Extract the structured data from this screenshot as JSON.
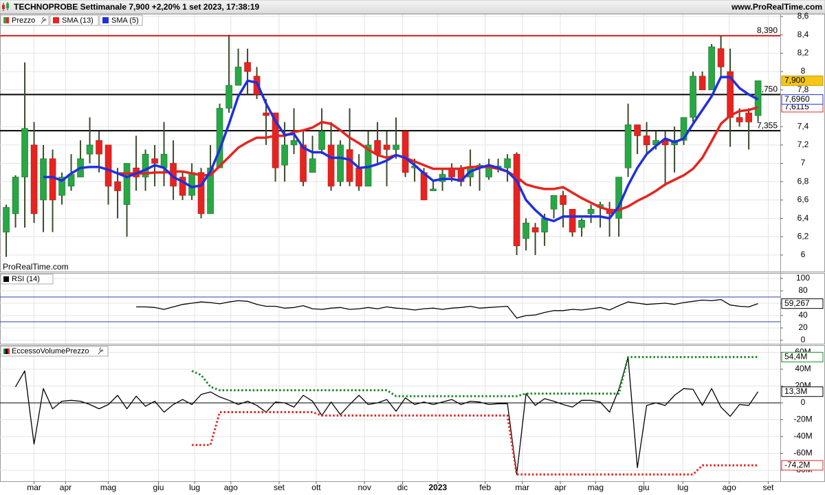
{
  "header": {
    "title": "TECHNOPROBE Settimanale 7,900 +2,20% 1 set 2023, 17:38:19",
    "site": "www.ProRealTime.com"
  },
  "chart_data": [
    {
      "type": "candlestick",
      "name": "Prezzo",
      "watermark": "ProRealTime.com",
      "up_color": "#27a844",
      "down_color": "#e8231f",
      "last_color": "#f5c518",
      "last_label": "7,900",
      "open": [
        6.25,
        6.45,
        6.85,
        7.2,
        6.6,
        7.05,
        6.65,
        6.75,
        6.85,
        7.1,
        7.25,
        7.2,
        6.8,
        6.55,
        6.95,
        6.85,
        7.05,
        6.95,
        7.0,
        6.85,
        6.65,
        6.9,
        6.45,
        6.95,
        7.6,
        7.85,
        8.1,
        7.95,
        7.55,
        7.55,
        6.98,
        7.2,
        7.2,
        6.9,
        7.15,
        7.2,
        6.8,
        7.15,
        6.95,
        6.75,
        7.25,
        7.2,
        7.15,
        7.35,
        6.95,
        6.9,
        6.7,
        6.8,
        6.95,
        6.95,
        6.85,
        6.95,
        6.85,
        6.95,
        6.95,
        7.1,
        6.18,
        6.3,
        6.25,
        6.5,
        6.65,
        6.5,
        6.3,
        6.45,
        6.52,
        6.5,
        6.4,
        6.95,
        7.42,
        7.3,
        7.2,
        7.25,
        7.2,
        7.25,
        7.5,
        7.95,
        7.8,
        8.25,
        8.0,
        7.5,
        7.55,
        7.52
      ],
      "high": [
        6.55,
        6.87,
        8.1,
        7.45,
        7.2,
        7.15,
        6.9,
        7.1,
        7.25,
        7.5,
        7.35,
        7.2,
        6.95,
        7.0,
        7.3,
        7.15,
        7.2,
        7.45,
        7.25,
        6.9,
        7.0,
        6.95,
        7.2,
        7.65,
        8.4,
        8.25,
        8.25,
        8.05,
        7.7,
        7.55,
        7.45,
        7.6,
        7.35,
        7.3,
        7.6,
        7.45,
        7.25,
        7.6,
        7.1,
        7.35,
        7.45,
        7.35,
        7.5,
        7.35,
        7.05,
        6.95,
        6.8,
        6.95,
        7.0,
        6.98,
        7.15,
        7.0,
        7.05,
        7.05,
        7.1,
        7.12,
        6.4,
        6.35,
        6.45,
        6.65,
        6.7,
        6.5,
        6.4,
        6.55,
        6.58,
        6.58,
        6.85,
        7.65,
        7.42,
        7.45,
        7.35,
        7.35,
        7.4,
        7.5,
        8.0,
        8.0,
        8.3,
        8.39,
        8.25,
        7.6,
        7.6,
        7.9
      ],
      "low": [
        5.98,
        6.3,
        6.3,
        6.35,
        6.25,
        6.25,
        6.55,
        6.7,
        6.85,
        7.0,
        6.9,
        6.55,
        6.4,
        6.2,
        6.7,
        6.7,
        6.75,
        6.75,
        6.6,
        6.6,
        6.6,
        6.4,
        6.45,
        6.95,
        7.55,
        7.85,
        7.75,
        7.7,
        7.2,
        6.8,
        6.8,
        7.1,
        6.75,
        6.9,
        7.1,
        6.7,
        6.75,
        6.75,
        6.7,
        6.75,
        7.0,
        6.75,
        7.05,
        6.85,
        6.8,
        6.6,
        6.7,
        6.7,
        6.8,
        6.75,
        6.75,
        6.7,
        6.82,
        6.9,
        6.8,
        6.0,
        6.05,
        6.0,
        6.1,
        6.4,
        6.3,
        6.2,
        6.2,
        6.35,
        6.3,
        6.2,
        6.2,
        6.85,
        7.1,
        7.1,
        7.15,
        6.75,
        6.9,
        7.2,
        7.45,
        7.8,
        7.8,
        7.95,
        7.18,
        7.4,
        7.15,
        7.45
      ],
      "close": [
        6.52,
        6.85,
        7.38,
        6.45,
        7.05,
        6.6,
        6.85,
        6.88,
        7.05,
        7.2,
        7.1,
        6.75,
        6.7,
        7.0,
        6.85,
        7.1,
        7.0,
        7.1,
        6.75,
        6.65,
        6.9,
        6.45,
        6.95,
        7.6,
        7.85,
        8.05,
        8.0,
        7.75,
        7.52,
        6.95,
        7.2,
        7.25,
        6.8,
        7.05,
        7.35,
        6.75,
        7.2,
        6.8,
        6.75,
        7.2,
        7.1,
        7.15,
        7.2,
        6.9,
        6.97,
        6.6,
        6.72,
        6.88,
        6.85,
        6.8,
        6.95,
        6.98,
        6.97,
        6.97,
        7.05,
        6.1,
        6.35,
        6.25,
        6.4,
        6.65,
        6.55,
        6.25,
        6.38,
        6.5,
        6.55,
        6.45,
        6.85,
        7.42,
        7.3,
        7.2,
        7.25,
        7.2,
        7.25,
        7.5,
        7.95,
        7.8,
        8.27,
        8.05,
        7.5,
        7.45,
        7.45,
        7.9
      ],
      "series": [
        {
          "name": "SMA (13)",
          "color": "#e8231f",
          "last_label": "7,6115",
          "values": [
            null,
            null,
            null,
            null,
            null,
            null,
            null,
            null,
            null,
            null,
            null,
            null,
            6.89,
            6.89,
            6.89,
            6.89,
            6.9,
            6.9,
            6.91,
            6.91,
            6.89,
            6.87,
            6.87,
            6.97,
            7.07,
            7.17,
            7.23,
            7.28,
            7.28,
            7.3,
            7.3,
            7.34,
            7.36,
            7.39,
            7.45,
            7.43,
            7.36,
            7.28,
            7.22,
            7.15,
            7.09,
            7.06,
            7.09,
            7.06,
            7.02,
            6.98,
            6.94,
            6.94,
            6.94,
            6.94,
            6.96,
            6.96,
            6.96,
            6.94,
            6.91,
            6.85,
            6.77,
            6.74,
            6.72,
            6.72,
            6.74,
            6.68,
            6.62,
            6.57,
            6.52,
            6.49,
            6.49,
            6.53,
            6.59,
            6.64,
            6.7,
            6.77,
            6.82,
            6.87,
            6.94,
            7.06,
            7.24,
            7.43,
            7.52,
            7.57,
            7.58,
            7.6115
          ]
        },
        {
          "name": "SMA (5)",
          "color": "#1f2fe0",
          "last_label": "7,6960",
          "values": [
            null,
            null,
            null,
            null,
            6.85,
            6.85,
            6.81,
            6.89,
            6.95,
            6.96,
            6.96,
            6.93,
            6.89,
            6.85,
            6.89,
            6.93,
            6.98,
            6.95,
            6.85,
            6.8,
            6.74,
            6.76,
            6.91,
            7.15,
            7.43,
            7.73,
            7.9,
            7.88,
            7.65,
            7.46,
            7.31,
            7.32,
            7.17,
            7.12,
            7.12,
            7.06,
            7.06,
            7.04,
            6.95,
            6.96,
            6.99,
            7.03,
            7.09,
            7.06,
            6.98,
            6.89,
            6.81,
            6.83,
            6.83,
            6.81,
            6.91,
            6.95,
            6.98,
            6.95,
            6.91,
            6.81,
            6.6,
            6.49,
            6.4,
            6.37,
            6.42,
            6.42,
            6.42,
            6.42,
            6.42,
            6.4,
            6.53,
            6.76,
            6.95,
            7.1,
            7.19,
            7.27,
            7.23,
            7.27,
            7.43,
            7.58,
            7.73,
            7.94,
            7.94,
            7.82,
            7.75,
            7.696
          ]
        }
      ],
      "levels": [
        {
          "value": 8.39,
          "label": "8,390",
          "color": "#e8231f"
        },
        {
          "value": 7.75,
          "label": "7,750",
          "color": "#000000"
        },
        {
          "value": 7.355,
          "label": "7,355",
          "color": "#000000"
        }
      ],
      "xlim": [
        -0.67,
        83.4
      ],
      "ylim": [
        5.82,
        8.63
      ],
      "yticks": [
        {
          "value": 8.6,
          "label": "8,6"
        },
        {
          "value": 8.4,
          "label": "8,4"
        },
        {
          "value": 8.2,
          "label": "8,2"
        },
        8,
        {
          "value": 7.8,
          "label": "7,8"
        },
        {
          "value": 7.4,
          "label": "7,4"
        },
        {
          "value": 7.2,
          "label": "7,2"
        },
        7,
        {
          "value": 6.8,
          "label": "6,8"
        },
        {
          "value": 6.6,
          "label": "6,6"
        },
        {
          "value": 6.4,
          "label": "6,4"
        },
        {
          "value": 6.2,
          "label": "6,2"
        },
        6
      ]
    },
    {
      "type": "line",
      "title": "RSI (14)",
      "series": [
        {
          "color": "#000000",
          "last_label": "59,267",
          "values": [
            null,
            null,
            null,
            null,
            null,
            null,
            null,
            null,
            null,
            null,
            null,
            null,
            null,
            null,
            54,
            54,
            53,
            50,
            54,
            58,
            60,
            62,
            61,
            59,
            62,
            64,
            63,
            58,
            55,
            55,
            52,
            53,
            56,
            51,
            50,
            52,
            53,
            50,
            51,
            53,
            51,
            54,
            52,
            51,
            49,
            51,
            52,
            50,
            52,
            53,
            55,
            52,
            53,
            54,
            55,
            36,
            40,
            41,
            45,
            48,
            48,
            50,
            49,
            51,
            53,
            49,
            56,
            62,
            60,
            58,
            59,
            60,
            58,
            61,
            63,
            65,
            64,
            66,
            57,
            55,
            54,
            59.267
          ]
        }
      ],
      "levels": [
        {
          "value": 70,
          "color": "#2b3fae"
        },
        {
          "value": 30,
          "color": "#2b3fae"
        }
      ],
      "xlim": [
        -0.67,
        83.4
      ],
      "ylim": [
        -5.6,
        108.9
      ],
      "yticks": [
        100,
        80,
        60,
        40,
        20,
        0
      ]
    },
    {
      "type": "line",
      "title": "EccessoVolumePrezzo",
      "series": [
        {
          "color": "#000000",
          "style": "solid",
          "last_label": "13,3M",
          "values": [
            null,
            19,
            38,
            -49,
            17,
            -7,
            2,
            3,
            2,
            -2,
            -7,
            -2,
            9,
            -7,
            8,
            -4,
            2,
            -11,
            -2,
            4,
            -2,
            10,
            13,
            7,
            3,
            -2,
            2,
            -3,
            -11,
            1,
            0,
            -5,
            9,
            2,
            -15,
            1,
            -14,
            -2,
            9,
            -2,
            0,
            4,
            -10,
            6,
            -2,
            1,
            -2,
            1,
            4,
            -2,
            2,
            1,
            -2,
            -1,
            -1,
            -85,
            11,
            -3,
            5,
            2,
            -2,
            -5,
            3,
            3,
            1,
            -11,
            16,
            54,
            -77,
            -3,
            0,
            -3,
            9,
            17,
            16,
            -3,
            17,
            -5,
            -16,
            -2,
            -3,
            13.3
          ]
        },
        {
          "color": "#1a8a2a",
          "style": "dotted",
          "last_label": "54,4M",
          "values": [
            null,
            null,
            null,
            null,
            null,
            null,
            null,
            null,
            null,
            null,
            null,
            null,
            null,
            null,
            null,
            null,
            null,
            null,
            null,
            null,
            38,
            33,
            19,
            15,
            15,
            15,
            15,
            15,
            15,
            15,
            15,
            15,
            15,
            15,
            15,
            15,
            15,
            15,
            15,
            15,
            15,
            15,
            8,
            8,
            8,
            8,
            8,
            8,
            8,
            8,
            8,
            8,
            8,
            8,
            8,
            8,
            11,
            11,
            11,
            11,
            11,
            11,
            11,
            11,
            11,
            11,
            11,
            54.4,
            54.4,
            54.4,
            54.4,
            54.4,
            54.4,
            54.4,
            54.4,
            54.4,
            54.4,
            54.4,
            54.4,
            54.4,
            54.4,
            54.4
          ]
        },
        {
          "color": "#e8231f",
          "style": "dotted",
          "last_label": "-74,2M",
          "values": [
            null,
            null,
            null,
            null,
            null,
            null,
            null,
            null,
            null,
            null,
            null,
            null,
            null,
            null,
            null,
            null,
            null,
            null,
            null,
            null,
            -50,
            -50,
            -50,
            -11,
            -11,
            -11,
            -11,
            -11,
            -11,
            -11,
            -11,
            -11,
            -11,
            -11,
            -15,
            -15,
            -15,
            -15,
            -15,
            -15,
            -15,
            -15,
            -15,
            -15,
            -15,
            -15,
            -15,
            -15,
            -15,
            -15,
            -15,
            -15,
            -15,
            -15,
            -15,
            -85,
            -85,
            -85,
            -85,
            -85,
            -85,
            -85,
            -85,
            -85,
            -85,
            -85,
            -85,
            -85,
            -85,
            -85,
            -85,
            -85,
            -85,
            -85,
            -85,
            -74.2,
            -74.2,
            -74.2,
            -74.2,
            -74.2,
            -74.2,
            -74.2
          ]
        }
      ],
      "levels": [
        {
          "value": 0,
          "color": "#000000"
        }
      ],
      "xlim": [
        -0.67,
        83.4
      ],
      "ylim": [
        -93.1,
        68.6
      ],
      "yticks": [
        {
          "value": 60,
          "label": "60M"
        },
        {
          "value": 40,
          "label": "40M"
        },
        {
          "value": 20,
          "label": "20M"
        },
        0,
        {
          "value": -20,
          "label": "-20M"
        },
        {
          "value": -40,
          "label": "-40M"
        },
        {
          "value": -60,
          "label": "-60M"
        },
        {
          "value": -80,
          "label": "-80M"
        }
      ],
      "xticks": [
        {
          "value": 3,
          "label": "mar"
        },
        {
          "value": 6.4,
          "label": "apr"
        },
        {
          "value": 11,
          "label": "mag"
        },
        {
          "value": 16.4,
          "label": "giu"
        },
        {
          "value": 20.3,
          "label": "lug"
        },
        {
          "value": 24.2,
          "label": "ago"
        },
        {
          "value": 29.4,
          "label": "set"
        },
        {
          "value": 33.4,
          "label": "ott"
        },
        {
          "value": 38.6,
          "label": "nov"
        },
        {
          "value": 42.7,
          "label": "dic"
        },
        {
          "value": 46.5,
          "label": "2023"
        },
        {
          "value": 51.6,
          "label": "feb"
        },
        {
          "value": 55.6,
          "label": "mar"
        },
        {
          "value": 59.7,
          "label": "apr"
        },
        {
          "value": 63.5,
          "label": "mag"
        },
        {
          "value": 68.7,
          "label": "giu"
        },
        {
          "value": 72.9,
          "label": "lug"
        },
        {
          "value": 77.9,
          "label": "ago"
        },
        {
          "value": 82.1,
          "label": "set"
        }
      ]
    }
  ]
}
